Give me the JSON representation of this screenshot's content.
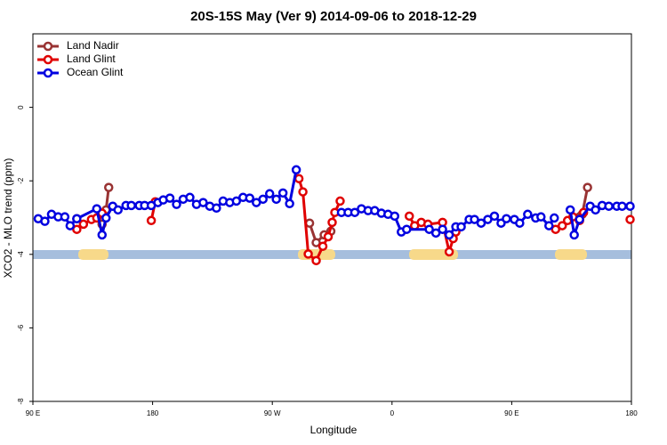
{
  "chart_data": {
    "type": "line",
    "title": "20S-15S May (Ver 9)   2014-09-06 to 2018-12-29",
    "x_label": "Longitude",
    "y_label": "XCO2 - MLO trend (ppm)",
    "xlim": [
      90,
      540
    ],
    "ylim": [
      -8,
      2
    ],
    "xticks": [
      {
        "value": 90,
        "label": "90 E"
      },
      {
        "value": 180,
        "label": "180"
      },
      {
        "value": 270,
        "label": "90 W"
      },
      {
        "value": 360,
        "label": "0"
      },
      {
        "value": 450,
        "label": "90 E"
      },
      {
        "value": 540,
        "label": "180"
      }
    ],
    "yticks": [
      -8,
      -6,
      -4,
      -2,
      0
    ],
    "legend": "top-left",
    "series": [
      {
        "name": "Land Nadir",
        "color": "#993333",
        "x": [
          123,
          null,
          142,
          145,
          147,
          null,
          298,
          303,
          309,
          314,
          null,
          501,
          503,
          507
        ],
        "values": [
          -3.03,
          null,
          -3.18,
          -2.79,
          -2.18,
          null,
          -3.15,
          -3.68,
          -3.47,
          -3.37,
          null,
          -2.98,
          -2.91,
          -2.18
        ]
      },
      {
        "name": "Land Glint",
        "color": "#e00000",
        "x": [
          123,
          128,
          134,
          138,
          142,
          null,
          179,
          182,
          null,
          290,
          293,
          297,
          303,
          308,
          312,
          315,
          317,
          321,
          null,
          373,
          377,
          382,
          387,
          398,
          403,
          406,
          408,
          null,
          483,
          488,
          492,
          496,
          501,
          504,
          null,
          539
        ],
        "values": [
          -3.32,
          -3.18,
          -3.05,
          -3.01,
          -2.88,
          null,
          -3.08,
          -2.57,
          null,
          -1.94,
          -2.3,
          -3.99,
          -4.17,
          -3.78,
          -3.52,
          -3.13,
          -2.86,
          -2.55,
          null,
          -2.96,
          -3.22,
          -3.13,
          -3.18,
          -3.13,
          -3.93,
          -3.57,
          -3.39,
          null,
          -3.32,
          -3.22,
          -3.08,
          -2.98,
          -3.08,
          -2.86,
          null,
          -3.05
        ]
      },
      {
        "name": "Ocean Glint",
        "color": "#0000e0",
        "x": [
          94,
          99,
          104,
          109,
          114,
          118,
          123,
          138,
          142,
          145,
          150,
          154,
          160,
          164,
          170,
          174,
          179,
          184,
          188,
          193,
          198,
          203,
          208,
          213,
          218,
          223,
          228,
          233,
          238,
          243,
          248,
          253,
          258,
          263,
          268,
          273,
          278,
          283,
          288,
          null,
          322,
          327,
          332,
          337,
          342,
          347,
          352,
          357,
          362,
          367,
          371,
          388,
          393,
          398,
          403,
          408,
          412,
          418,
          422,
          427,
          432,
          437,
          442,
          446,
          452,
          456,
          462,
          468,
          472,
          478,
          482,
          null,
          494,
          497,
          501,
          509,
          513,
          518,
          523,
          529,
          533,
          539
        ],
        "values": [
          -3.03,
          -3.1,
          -2.91,
          -2.98,
          -2.98,
          -3.22,
          -3.03,
          -2.76,
          -3.47,
          -3.01,
          -2.69,
          -2.79,
          -2.67,
          -2.67,
          -2.67,
          -2.67,
          -2.67,
          -2.59,
          -2.52,
          -2.47,
          -2.64,
          -2.5,
          -2.45,
          -2.64,
          -2.59,
          -2.69,
          -2.74,
          -2.55,
          -2.59,
          -2.55,
          -2.45,
          -2.47,
          -2.59,
          -2.5,
          -2.35,
          -2.5,
          -2.33,
          -2.62,
          -1.7,
          null,
          -2.86,
          -2.86,
          -2.86,
          -2.76,
          -2.81,
          -2.81,
          -2.88,
          -2.91,
          -2.96,
          -3.39,
          -3.32,
          -3.32,
          -3.42,
          -3.32,
          -3.47,
          -3.25,
          -3.25,
          -3.05,
          -3.05,
          -3.15,
          -3.05,
          -2.96,
          -3.15,
          -3.03,
          -3.05,
          -3.15,
          -2.91,
          -3.01,
          -2.98,
          -3.22,
          -3.01,
          null,
          -2.79,
          -3.47,
          -3.05,
          -2.69,
          -2.79,
          -2.67,
          -2.69,
          -2.69,
          -2.69,
          -2.69
        ]
      }
    ]
  }
}
